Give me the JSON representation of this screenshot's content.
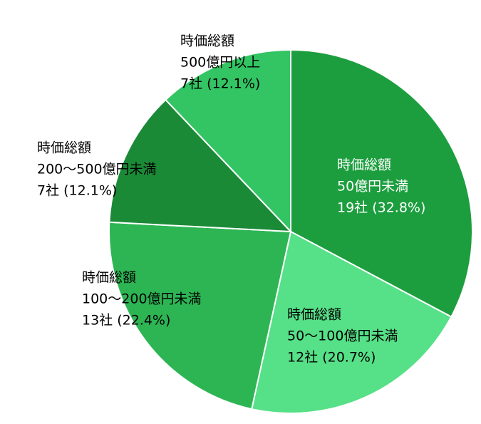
{
  "chart_data": {
    "type": "pie",
    "categories": [
      [
        "時価総額",
        "50億円未満"
      ],
      [
        "時価総額",
        "50〜100億円未満"
      ],
      [
        "時価総額",
        "100〜200億円未満"
      ],
      [
        "時価総額",
        "200〜500億円未満"
      ],
      [
        "時価総額",
        "500億円以上"
      ]
    ],
    "values": [
      32.8,
      20.7,
      22.4,
      12.1,
      12.1
    ],
    "value_labels": [
      "19社 (32.8%)",
      "12社 (20.7%)",
      "13社 (22.4%)",
      "7社 (12.1%)",
      "7社 (12.1%)"
    ],
    "colors": [
      "#1c9e3e",
      "#56e087",
      "#2db554",
      "#1b8a37",
      "#33c463"
    ]
  }
}
